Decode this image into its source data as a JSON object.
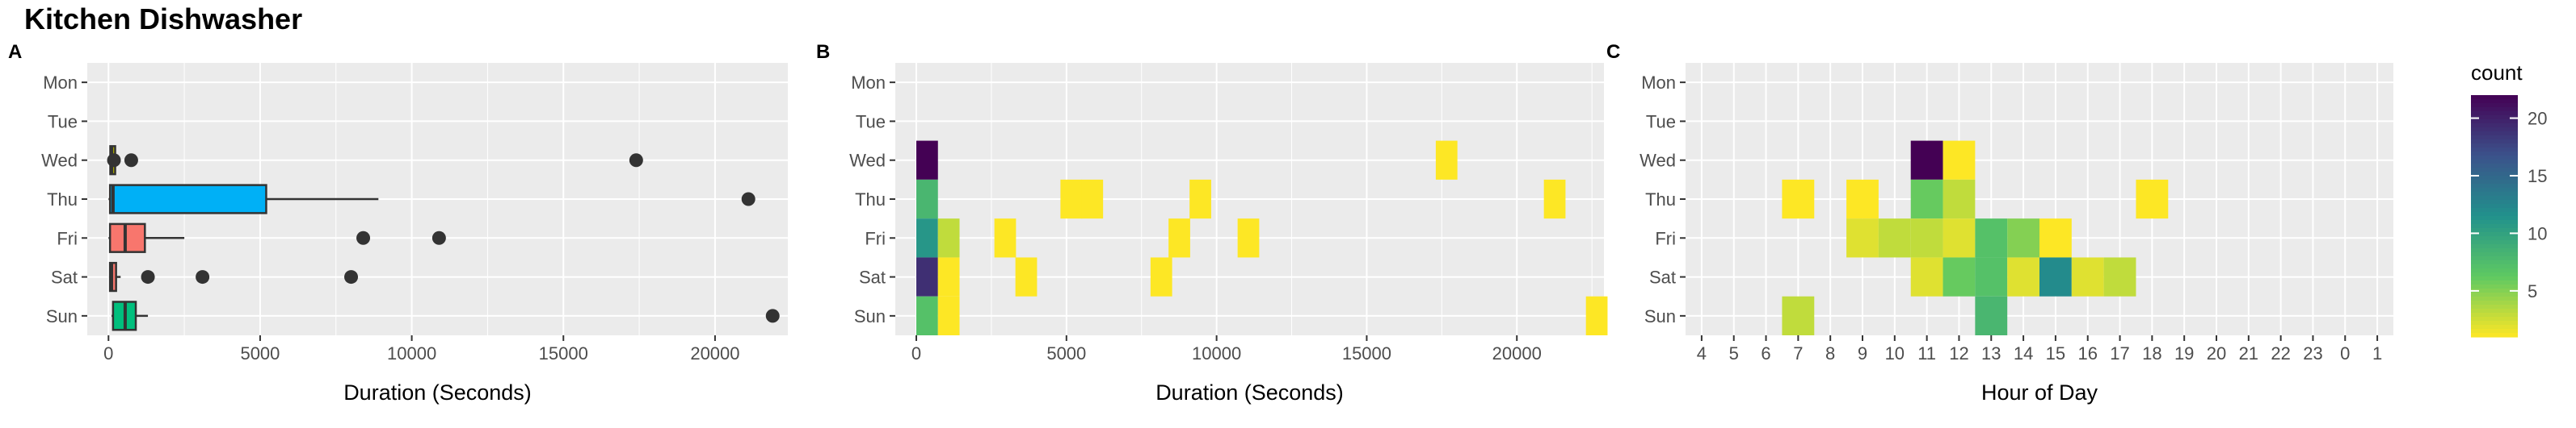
{
  "title": "Kitchen Dishwasher",
  "colors": {
    "panel_bg": "#ebebeb",
    "grid": "#ffffff",
    "outlier": "#333333",
    "box_outline": "#333333",
    "viridis": [
      "#fde725",
      "#5ec962",
      "#21918c",
      "#3b528b",
      "#440154"
    ]
  },
  "chart_data": [
    {
      "panel": "A",
      "type": "boxplot",
      "xlabel": "Duration (Seconds)",
      "ylabel": "",
      "xlim": [
        -700,
        22400
      ],
      "x_ticks": [
        0,
        5000,
        10000,
        15000,
        20000
      ],
      "x_tick_labels": [
        "0",
        "5000",
        "10000",
        "15000",
        "20000"
      ],
      "categories": [
        "Mon",
        "Tue",
        "Wed",
        "Thu",
        "Fri",
        "Sat",
        "Sun"
      ],
      "grid": true,
      "boxes": [
        {
          "day": "Mon",
          "count": 0
        },
        {
          "day": "Tue",
          "count": 0
        },
        {
          "day": "Wed",
          "min": 30,
          "q1": 60,
          "median": 100,
          "q3": 200,
          "max": 230,
          "outliers": [
            180,
            750,
            17400
          ],
          "color": "#a3a500"
        },
        {
          "day": "Thu",
          "min": 0,
          "q1": 50,
          "median": 150,
          "q3": 5200,
          "max": 8900,
          "outliers": [
            21100
          ],
          "color": "#00b0f6"
        },
        {
          "day": "Fri",
          "min": 0,
          "q1": 50,
          "median": 550,
          "q3": 1200,
          "max": 2500,
          "outliers": [
            8400,
            10900
          ],
          "color": "#f8766d"
        },
        {
          "day": "Sat",
          "min": 20,
          "q1": 50,
          "median": 100,
          "q3": 250,
          "max": 400,
          "outliers": [
            1300,
            3100,
            8000
          ],
          "color": "#f8766d"
        },
        {
          "day": "Sun",
          "min": 100,
          "q1": 150,
          "median": 550,
          "q3": 900,
          "max": 1300,
          "outliers": [
            21900
          ],
          "color": "#00bf7d"
        }
      ]
    },
    {
      "panel": "B",
      "type": "heatmap",
      "xlabel": "Duration (Seconds)",
      "ylabel": "",
      "xlim": [
        -700,
        22900
      ],
      "x_ticks": [
        0,
        5000,
        10000,
        15000,
        20000
      ],
      "x_tick_labels": [
        "0",
        "5000",
        "10000",
        "15000",
        "20000"
      ],
      "categories": [
        "Mon",
        "Tue",
        "Wed",
        "Thu",
        "Fri",
        "Sat",
        "Sun"
      ],
      "bin_width": 720,
      "grid": true,
      "cells": [
        {
          "x": 0,
          "day": "Wed",
          "count": 22
        },
        {
          "x": 17300,
          "day": "Wed",
          "count": 1
        },
        {
          "x": 0,
          "day": "Thu",
          "count": 8
        },
        {
          "x": 4800,
          "day": "Thu",
          "count": 1
        },
        {
          "x": 5500,
          "day": "Thu",
          "count": 1
        },
        {
          "x": 9100,
          "day": "Thu",
          "count": 1
        },
        {
          "x": 20900,
          "day": "Thu",
          "count": 1
        },
        {
          "x": 0,
          "day": "Fri",
          "count": 11
        },
        {
          "x": 720,
          "day": "Fri",
          "count": 3
        },
        {
          "x": 2600,
          "day": "Fri",
          "count": 1
        },
        {
          "x": 8400,
          "day": "Fri",
          "count": 1
        },
        {
          "x": 10700,
          "day": "Fri",
          "count": 1
        },
        {
          "x": 0,
          "day": "Sat",
          "count": 19
        },
        {
          "x": 720,
          "day": "Sat",
          "count": 1
        },
        {
          "x": 3300,
          "day": "Sat",
          "count": 1
        },
        {
          "x": 7800,
          "day": "Sat",
          "count": 1
        },
        {
          "x": 0,
          "day": "Sun",
          "count": 7
        },
        {
          "x": 720,
          "day": "Sun",
          "count": 1
        },
        {
          "x": 22300,
          "day": "Sun",
          "count": 1
        }
      ]
    },
    {
      "panel": "C",
      "type": "heatmap",
      "xlabel": "Hour of Day",
      "ylabel": "",
      "categories_x": [
        "4",
        "5",
        "6",
        "7",
        "8",
        "9",
        "10",
        "11",
        "12",
        "13",
        "14",
        "15",
        "16",
        "17",
        "18",
        "19",
        "20",
        "21",
        "22",
        "23",
        "0",
        "1"
      ],
      "categories": [
        "Mon",
        "Tue",
        "Wed",
        "Thu",
        "Fri",
        "Sat",
        "Sun"
      ],
      "grid": true,
      "cells": [
        {
          "hour": "11",
          "day": "Wed",
          "count": 22
        },
        {
          "hour": "12",
          "day": "Wed",
          "count": 1
        },
        {
          "hour": "7",
          "day": "Thu",
          "count": 1
        },
        {
          "hour": "9",
          "day": "Thu",
          "count": 1
        },
        {
          "hour": "11",
          "day": "Thu",
          "count": 6
        },
        {
          "hour": "12",
          "day": "Thu",
          "count": 3
        },
        {
          "hour": "18",
          "day": "Thu",
          "count": 1
        },
        {
          "hour": "9",
          "day": "Fri",
          "count": 2
        },
        {
          "hour": "10",
          "day": "Fri",
          "count": 3
        },
        {
          "hour": "11",
          "day": "Fri",
          "count": 3
        },
        {
          "hour": "12",
          "day": "Fri",
          "count": 2
        },
        {
          "hour": "13",
          "day": "Fri",
          "count": 7
        },
        {
          "hour": "14",
          "day": "Fri",
          "count": 5
        },
        {
          "hour": "15",
          "day": "Fri",
          "count": 1
        },
        {
          "hour": "11",
          "day": "Sat",
          "count": 2
        },
        {
          "hour": "12",
          "day": "Sat",
          "count": 6
        },
        {
          "hour": "13",
          "day": "Sat",
          "count": 7
        },
        {
          "hour": "14",
          "day": "Sat",
          "count": 2
        },
        {
          "hour": "15",
          "day": "Sat",
          "count": 12
        },
        {
          "hour": "16",
          "day": "Sat",
          "count": 2
        },
        {
          "hour": "17",
          "day": "Sat",
          "count": 3
        },
        {
          "hour": "7",
          "day": "Sun",
          "count": 3
        },
        {
          "hour": "13",
          "day": "Sun",
          "count": 8
        }
      ]
    }
  ],
  "legend": {
    "title": "count",
    "min": 1,
    "max": 22,
    "ticks": [
      5,
      10,
      15,
      20
    ],
    "tick_labels": [
      "5",
      "10",
      "15",
      "20"
    ]
  }
}
